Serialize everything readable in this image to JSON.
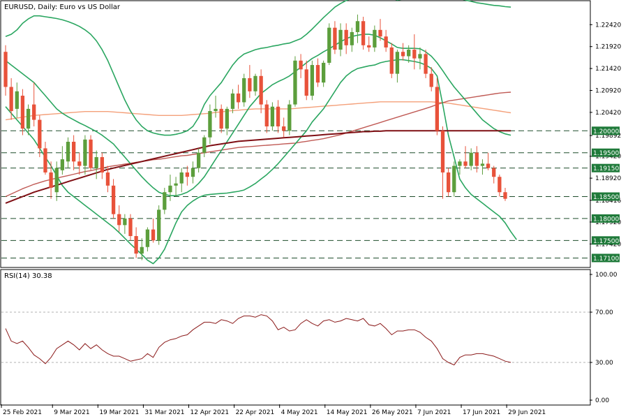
{
  "chart_data": [
    {
      "type": "candlestick",
      "title": "EURUSD, Daily:  Euro vs US Dollar",
      "ylim": [
        1.169,
        1.2295
      ],
      "y_ticks": [
        "1.22420",
        "1.21920",
        "1.21420",
        "1.20920",
        "1.20420",
        "1.19892",
        "1.19420",
        "1.18920",
        "1.18416",
        "1.17920",
        "1.17420"
      ],
      "y_tick_values": [
        1.2242,
        1.2192,
        1.2142,
        1.2092,
        1.2042,
        1.19892,
        1.1942,
        1.1892,
        1.18416,
        1.1792,
        1.1742
      ],
      "levels": [
        {
          "label": "1.20000",
          "value": 1.2
        },
        {
          "label": "1.19500",
          "value": 1.195
        },
        {
          "label": "1.19150",
          "value": 1.1915
        },
        {
          "label": "1.18500",
          "value": 1.185
        },
        {
          "label": "1.18000",
          "value": 1.18
        },
        {
          "label": "1.17500",
          "value": 1.175
        },
        {
          "label": "1.17100",
          "value": 1.171
        }
      ],
      "x_labels": [
        "25 Feb 2021",
        "9 Mar 2021",
        "19 Mar 2021",
        "31 Mar 2021",
        "12 Apr 2021",
        "22 Apr 2021",
        "4 May 2021",
        "14 May 2021",
        "26 May 2021",
        "7 Jun 2021",
        "17 Jun 2021",
        "29 Jun 2021"
      ],
      "x_label_index": [
        0,
        9,
        17,
        25,
        33,
        41,
        49,
        57,
        65,
        73,
        81,
        89
      ],
      "candles": [
        [
          1.218,
          1.2195,
          1.208,
          1.21
        ],
        [
          1.21,
          1.212,
          1.2025,
          1.2045
        ],
        [
          1.205,
          1.211,
          1.203,
          1.209
        ],
        [
          1.208,
          1.2095,
          1.199,
          1.2005
        ],
        [
          1.2005,
          1.206,
          1.199,
          1.205
        ],
        [
          1.206,
          1.211,
          1.201,
          1.2025
        ],
        [
          1.2025,
          1.2035,
          1.194,
          1.196
        ],
        [
          1.196,
          1.1975,
          1.19,
          1.1905
        ],
        [
          1.1905,
          1.193,
          1.1845,
          1.187
        ],
        [
          1.186,
          1.193,
          1.184,
          1.1915
        ],
        [
          1.191,
          1.1965,
          1.19,
          1.1935
        ],
        [
          1.193,
          1.1985,
          1.1915,
          1.1975
        ],
        [
          1.1975,
          1.199,
          1.191,
          1.193
        ],
        [
          1.193,
          1.195,
          1.19,
          1.192
        ],
        [
          1.192,
          1.199,
          1.19,
          1.198
        ],
        [
          1.198,
          1.199,
          1.191,
          1.1915
        ],
        [
          1.1915,
          1.1955,
          1.189,
          1.194
        ],
        [
          1.194,
          1.195,
          1.189,
          1.1905
        ],
        [
          1.1905,
          1.192,
          1.186,
          1.1875
        ],
        [
          1.1875,
          1.189,
          1.18,
          1.181
        ],
        [
          1.181,
          1.183,
          1.177,
          1.1785
        ],
        [
          1.1785,
          1.181,
          1.1765,
          1.18
        ],
        [
          1.18,
          1.181,
          1.175,
          1.176
        ],
        [
          1.176,
          1.178,
          1.171,
          1.172
        ],
        [
          1.172,
          1.1755,
          1.1705,
          1.1735
        ],
        [
          1.1735,
          1.178,
          1.1725,
          1.1775
        ],
        [
          1.1775,
          1.18,
          1.1745,
          1.175
        ],
        [
          1.175,
          1.183,
          1.174,
          1.182
        ],
        [
          1.182,
          1.187,
          1.181,
          1.186
        ],
        [
          1.186,
          1.19,
          1.184,
          1.1875
        ],
        [
          1.1875,
          1.1895,
          1.185,
          1.188
        ],
        [
          1.188,
          1.1915,
          1.186,
          1.1905
        ],
        [
          1.1905,
          1.192,
          1.1875,
          1.1895
        ],
        [
          1.1895,
          1.193,
          1.188,
          1.1915
        ],
        [
          1.1915,
          1.196,
          1.1905,
          1.195
        ],
        [
          1.195,
          1.199,
          1.194,
          1.1985
        ],
        [
          1.1985,
          1.206,
          1.197,
          1.2045
        ],
        [
          1.2045,
          1.208,
          1.203,
          1.205
        ],
        [
          1.205,
          1.206,
          1.1995,
          1.2005
        ],
        [
          1.2005,
          1.2055,
          1.199,
          1.205
        ],
        [
          1.205,
          1.2095,
          1.204,
          1.2085
        ],
        [
          1.2085,
          1.2105,
          1.205,
          1.2065
        ],
        [
          1.2065,
          1.213,
          1.2055,
          1.212
        ],
        [
          1.212,
          1.215,
          1.2075,
          1.209
        ],
        [
          1.209,
          1.213,
          1.208,
          1.2125
        ],
        [
          1.2125,
          1.214,
          1.204,
          1.206
        ],
        [
          1.206,
          1.207,
          1.1995,
          1.201
        ],
        [
          1.201,
          1.2065,
          1.2,
          1.2055
        ],
        [
          1.2055,
          1.207,
          1.1995,
          1.201
        ],
        [
          1.201,
          1.203,
          1.1985,
          1.2
        ],
        [
          1.2,
          1.207,
          1.199,
          1.206
        ],
        [
          1.206,
          1.217,
          1.2055,
          1.216
        ],
        [
          1.216,
          1.2175,
          1.212,
          1.214
        ],
        [
          1.214,
          1.216,
          1.207,
          1.208
        ],
        [
          1.208,
          1.216,
          1.207,
          1.215
        ],
        [
          1.215,
          1.2165,
          1.21,
          1.211
        ],
        [
          1.211,
          1.216,
          1.21,
          1.2155
        ],
        [
          1.2155,
          1.2245,
          1.215,
          1.2235
        ],
        [
          1.2235,
          1.225,
          1.2175,
          1.2185
        ],
        [
          1.2185,
          1.2245,
          1.217,
          1.223
        ],
        [
          1.223,
          1.2245,
          1.2175,
          1.2195
        ],
        [
          1.2195,
          1.2235,
          1.218,
          1.2225
        ],
        [
          1.2225,
          1.2265,
          1.22,
          1.225
        ],
        [
          1.225,
          1.226,
          1.2185,
          1.2195
        ],
        [
          1.2195,
          1.2215,
          1.218,
          1.219
        ],
        [
          1.219,
          1.224,
          1.218,
          1.223
        ],
        [
          1.223,
          1.2255,
          1.2205,
          1.2215
        ],
        [
          1.2215,
          1.223,
          1.218,
          1.219
        ],
        [
          1.219,
          1.22,
          1.212,
          1.213
        ],
        [
          1.213,
          1.2185,
          1.211,
          1.218
        ],
        [
          1.218,
          1.22,
          1.216,
          1.217
        ],
        [
          1.217,
          1.2195,
          1.2155,
          1.2185
        ],
        [
          1.2185,
          1.222,
          1.214,
          1.2165
        ],
        [
          1.2165,
          1.219,
          1.214,
          1.2175
        ],
        [
          1.2175,
          1.2185,
          1.212,
          1.213
        ],
        [
          1.213,
          1.2145,
          1.209,
          1.21
        ],
        [
          1.21,
          1.212,
          1.199,
          1.2
        ],
        [
          1.2,
          1.201,
          1.1845,
          1.1905
        ],
        [
          1.1905,
          1.1915,
          1.185,
          1.186
        ],
        [
          1.186,
          1.193,
          1.185,
          1.192
        ],
        [
          1.192,
          1.1935,
          1.19,
          1.193
        ],
        [
          1.193,
          1.1965,
          1.1915,
          1.192
        ],
        [
          1.192,
          1.196,
          1.191,
          1.195
        ],
        [
          1.195,
          1.1965,
          1.1905,
          1.192
        ],
        [
          1.192,
          1.1935,
          1.19,
          1.1925
        ],
        [
          1.1925,
          1.195,
          1.191,
          1.1915
        ],
        [
          1.1915,
          1.192,
          1.188,
          1.1895
        ],
        [
          1.1895,
          1.19,
          1.185,
          1.186
        ],
        [
          1.186,
          1.187,
          1.184,
          1.1845
        ]
      ],
      "sma_slow": [
        1.185,
        1.1856,
        1.1862,
        1.1868,
        1.1873,
        1.1878,
        1.1882,
        1.1886,
        1.1889,
        1.1892,
        1.1895,
        1.1898,
        1.1901,
        1.1904,
        1.1907,
        1.1909,
        1.1912,
        1.1915,
        1.1918,
        1.192,
        1.1922,
        1.1924,
        1.1926,
        1.1928,
        1.193,
        1.1932,
        1.1934,
        1.1935,
        1.1937,
        1.1939,
        1.1941,
        1.1943,
        1.1944,
        1.1946,
        1.1948,
        1.195,
        1.1952,
        1.1954,
        1.1956,
        1.1958,
        1.196,
        1.1962,
        1.1963,
        1.1964,
        1.1965,
        1.1966,
        1.1967,
        1.1968,
        1.1969,
        1.197,
        1.1971,
        1.1972,
        1.1974,
        1.1976,
        1.1978,
        1.198,
        1.1982,
        1.1985,
        1.1988,
        1.1991,
        1.1995,
        1.1999,
        1.2003,
        1.2007,
        1.2011,
        1.2015,
        1.2019,
        1.2023,
        1.2027,
        1.2031,
        1.2035,
        1.2039,
        1.2043,
        1.2047,
        1.2051,
        1.2055,
        1.206,
        1.2064,
        1.2068,
        1.207,
        1.2072,
        1.2074,
        1.2076,
        1.2078,
        1.208,
        1.2082,
        1.2084,
        1.2086,
        1.2087,
        1.2088
      ],
      "sma_200": [
        1.1835,
        1.184,
        1.1845,
        1.185,
        1.1855,
        1.186,
        1.1864,
        1.1868,
        1.1872,
        1.1876,
        1.188,
        1.1884,
        1.1888,
        1.1892,
        1.1896,
        1.19,
        1.1904,
        1.1908,
        1.1912,
        1.1915,
        1.1918,
        1.1921,
        1.1924,
        1.1927,
        1.193,
        1.1933,
        1.1936,
        1.1939,
        1.1942,
        1.1945,
        1.1948,
        1.1951,
        1.1954,
        1.1957,
        1.196,
        1.1963,
        1.1966,
        1.1968,
        1.197,
        1.1972,
        1.1974,
        1.1976,
        1.1977,
        1.1978,
        1.1979,
        1.198,
        1.1981,
        1.1982,
        1.1983,
        1.1984,
        1.1985,
        1.1986,
        1.1987,
        1.1988,
        1.1989,
        1.199,
        1.1991,
        1.1992,
        1.1993,
        1.1994,
        1.1995,
        1.1996,
        1.1997,
        1.1998,
        1.1998,
        1.1999,
        1.1999,
        1.2,
        1.2,
        1.2,
        1.2,
        1.2,
        1.2,
        1.2,
        1.2,
        1.2,
        1.2,
        1.2,
        1.2,
        1.2,
        1.2,
        1.2,
        1.2,
        1.2,
        1.2,
        1.2,
        1.2,
        1.2,
        1.2,
        1.2
      ],
      "ma_salmon": [
        1.2025,
        1.2027,
        1.2029,
        1.2031,
        1.2033,
        1.2035,
        1.2036,
        1.2037,
        1.2038,
        1.2039,
        1.204,
        1.2041,
        1.2042,
        1.2043,
        1.2044,
        1.2044,
        1.2044,
        1.2044,
        1.2044,
        1.2043,
        1.2042,
        1.2041,
        1.204,
        1.2039,
        1.2038,
        1.2037,
        1.2036,
        1.2035,
        1.2035,
        1.2035,
        1.2035,
        1.2035,
        1.2036,
        1.2037,
        1.2038,
        1.2039,
        1.204,
        1.2042,
        1.2043,
        1.2045,
        1.2046,
        1.2047,
        1.2048,
        1.2049,
        1.205,
        1.205,
        1.205,
        1.205,
        1.205,
        1.205,
        1.205,
        1.2051,
        1.2052,
        1.2053,
        1.2054,
        1.2055,
        1.2056,
        1.2057,
        1.2058,
        1.2059,
        1.206,
        1.2061,
        1.2062,
        1.2063,
        1.2064,
        1.2065,
        1.2066,
        1.2066,
        1.2066,
        1.2066,
        1.2066,
        1.2066,
        1.2066,
        1.2066,
        1.2066,
        1.2066,
        1.2065,
        1.2064,
        1.2063,
        1.2061,
        1.2059,
        1.2057,
        1.2055,
        1.2053,
        1.2051,
        1.2049,
        1.2047,
        1.2045,
        1.2043,
        1.2041
      ],
      "bb_upper": [
        1.2215,
        1.222,
        1.223,
        1.2245,
        1.2255,
        1.2262,
        1.2262,
        1.226,
        1.2258,
        1.2256,
        1.2253,
        1.2249,
        1.2244,
        1.2238,
        1.223,
        1.222,
        1.2205,
        1.2185,
        1.216,
        1.213,
        1.21,
        1.207,
        1.2045,
        1.2025,
        1.201,
        1.2,
        1.1995,
        1.1992,
        1.199,
        1.199,
        1.1992,
        1.1995,
        1.2,
        1.201,
        1.203,
        1.206,
        1.208,
        1.2095,
        1.211,
        1.213,
        1.215,
        1.2165,
        1.2175,
        1.218,
        1.2185,
        1.2188,
        1.219,
        1.2193,
        1.2195,
        1.2198,
        1.22,
        1.2205,
        1.221,
        1.222,
        1.2232,
        1.2245,
        1.2258,
        1.227,
        1.2282,
        1.229,
        1.2297,
        1.2302,
        1.2305,
        1.2307,
        1.2308,
        1.2308,
        1.2307,
        1.2305,
        1.2302,
        1.2298,
        1.23,
        1.2305,
        1.2308,
        1.231,
        1.2312,
        1.2312,
        1.2312,
        1.231,
        1.2307,
        1.2304,
        1.2301,
        1.2298,
        1.2295,
        1.2292,
        1.229,
        1.2288,
        1.2286,
        1.2285,
        1.2283,
        1.2282
      ],
      "bb_middle": [
        1.216,
        1.215,
        1.214,
        1.213,
        1.212,
        1.211,
        1.2095,
        1.208,
        1.2065,
        1.205,
        1.204,
        1.2032,
        1.2025,
        1.2018,
        1.2012,
        1.2005,
        1.1998,
        1.199,
        1.198,
        1.197,
        1.1955,
        1.194,
        1.1925,
        1.191,
        1.1895,
        1.1882,
        1.187,
        1.186,
        1.1855,
        1.1852,
        1.1852,
        1.1855,
        1.186,
        1.1868,
        1.188,
        1.1895,
        1.1915,
        1.1935,
        1.1955,
        1.1975,
        1.1995,
        1.2015,
        1.2035,
        1.2055,
        1.207,
        1.2085,
        1.2095,
        1.2105,
        1.2112,
        1.2118,
        1.2125,
        1.2135,
        1.2145,
        1.2155,
        1.2165,
        1.2172,
        1.218,
        1.2187,
        1.2195,
        1.2203,
        1.221,
        1.2215,
        1.2218,
        1.222,
        1.222,
        1.2218,
        1.2212,
        1.2205,
        1.2198,
        1.219,
        1.2188,
        1.2188,
        1.2188,
        1.2187,
        1.218,
        1.217,
        1.2155,
        1.2137,
        1.2118,
        1.21,
        1.2085,
        1.207,
        1.2055,
        1.204,
        1.2025,
        1.2015,
        1.2005,
        1.1998,
        1.1993,
        1.199
      ],
      "bb_lower": [
        1.2055,
        1.204,
        1.2025,
        1.201,
        1.1995,
        1.198,
        1.196,
        1.194,
        1.192,
        1.1898,
        1.1875,
        1.186,
        1.185,
        1.184,
        1.183,
        1.182,
        1.181,
        1.18,
        1.179,
        1.178,
        1.1768,
        1.1755,
        1.1742,
        1.173,
        1.1718,
        1.1705,
        1.1697,
        1.171,
        1.173,
        1.176,
        1.179,
        1.1815,
        1.183,
        1.184,
        1.1848,
        1.1853,
        1.1855,
        1.1856,
        1.1857,
        1.1858,
        1.186,
        1.1862,
        1.1865,
        1.1872,
        1.188,
        1.189,
        1.19,
        1.1912,
        1.1925,
        1.194,
        1.1955,
        1.197,
        1.1985,
        1.2,
        1.202,
        1.2035,
        1.205,
        1.207,
        1.209,
        1.211,
        1.2125,
        1.2135,
        1.2142,
        1.2145,
        1.2148,
        1.215,
        1.2155,
        1.2158,
        1.216,
        1.2162,
        1.2162,
        1.216,
        1.2158,
        1.2155,
        1.215,
        1.2142,
        1.2125,
        1.206,
        1.199,
        1.194,
        1.189,
        1.187,
        1.1855,
        1.1845,
        1.1835,
        1.1825,
        1.1815,
        1.1805,
        1.179,
        1.177,
        1.1752
      ]
    },
    {
      "type": "line",
      "title": "RSI(14) 30.38",
      "ylim": [
        0,
        100
      ],
      "y_ticks": [
        "100.00",
        "70.00",
        "30.00",
        "0.00"
      ],
      "y_tick_values": [
        100,
        70,
        30,
        0
      ],
      "ref_levels": [
        70,
        30
      ],
      "values": [
        57,
        47,
        45,
        47,
        42,
        36,
        33,
        29,
        34,
        41,
        44,
        47,
        44,
        40,
        45,
        41,
        44,
        40,
        37,
        35,
        35,
        33,
        31,
        32,
        33,
        37,
        34,
        42,
        46,
        48,
        49,
        51,
        52,
        56,
        59,
        62,
        62,
        61,
        64,
        63,
        61,
        65,
        67,
        67,
        66,
        68,
        67,
        63,
        56,
        58,
        55,
        56,
        61,
        64,
        61,
        59,
        63,
        64,
        62,
        63,
        65,
        64,
        63,
        65,
        60,
        59,
        61,
        57,
        52,
        55,
        55,
        56,
        56,
        54,
        50,
        47,
        41,
        33,
        30,
        28,
        34,
        36,
        36,
        37,
        37,
        36,
        35,
        33,
        31,
        30
      ],
      "label": "RSI(14) 30.38"
    }
  ],
  "colors": {
    "bull": "#5c9e3c",
    "bear": "#e8523a",
    "bollinger": "#2aa660",
    "sma_slow": "#c05a55",
    "ma_salmon": "#f4a07a",
    "sma_200": "#7f0f14",
    "rsi": "#8b1a1a",
    "level_box": "#1f7a3a"
  }
}
